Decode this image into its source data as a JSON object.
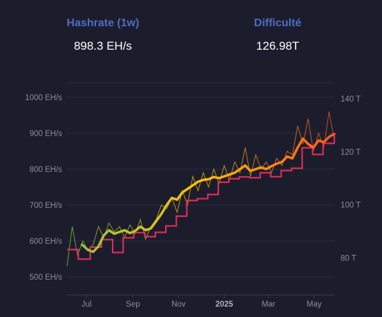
{
  "stats": {
    "hashrate": {
      "label": "Hashrate (1w)",
      "value": "898.3 EH/s"
    },
    "difficulty": {
      "label": "Difficulté",
      "value": "126.98T"
    }
  },
  "chart_data": {
    "type": "line",
    "grid": true,
    "x_range": [
      "2024-06-05",
      "2025-05-28"
    ],
    "x_ticks": [
      {
        "label": "Jul",
        "date": "2024-07-01",
        "bold": false
      },
      {
        "label": "Sep",
        "date": "2024-09-01",
        "bold": false
      },
      {
        "label": "Nov",
        "date": "2024-11-01",
        "bold": false
      },
      {
        "label": "2025",
        "date": "2025-01-01",
        "bold": true
      },
      {
        "label": "Mar",
        "date": "2025-03-01",
        "bold": false
      },
      {
        "label": "May",
        "date": "2025-05-01",
        "bold": false
      }
    ],
    "y_left": {
      "unit": "EH/s",
      "ylim": [
        450,
        1040
      ],
      "ticks": [
        "500 EH/s",
        "600 EH/s",
        "700 EH/s",
        "800 EH/s",
        "900 EH/s",
        "1000 EH/s"
      ],
      "tick_values": [
        500,
        600,
        700,
        800,
        900,
        1000
      ]
    },
    "y_right": {
      "unit": "T",
      "ylim": [
        66.0,
        146.0
      ],
      "ticks": [
        "80 T",
        "100 T",
        "120 T",
        "140 T"
      ],
      "tick_values": [
        80,
        100,
        120,
        140
      ]
    },
    "colors": {
      "gradient_start": "#8bc34a",
      "gradient_mid": "#ffc107",
      "gradient_end": "#ff5722",
      "difficulty": "#dd2c58",
      "grid": "#2c2e3d"
    },
    "series": [
      {
        "key": "hashrate_daily",
        "axis": "left",
        "points": [
          [
            "2024-06-05",
            530
          ],
          [
            "2024-06-12",
            640
          ],
          [
            "2024-06-19",
            560
          ],
          [
            "2024-06-26",
            600
          ],
          [
            "2024-07-03",
            575
          ],
          [
            "2024-07-10",
            590
          ],
          [
            "2024-07-17",
            640
          ],
          [
            "2024-07-24",
            610
          ],
          [
            "2024-07-31",
            650
          ],
          [
            "2024-08-07",
            625
          ],
          [
            "2024-08-14",
            640
          ],
          [
            "2024-08-21",
            610
          ],
          [
            "2024-08-28",
            645
          ],
          [
            "2024-09-04",
            620
          ],
          [
            "2024-09-11",
            660
          ],
          [
            "2024-09-18",
            605
          ],
          [
            "2024-09-25",
            640
          ],
          [
            "2024-10-02",
            660
          ],
          [
            "2024-10-09",
            700
          ],
          [
            "2024-10-16",
            690
          ],
          [
            "2024-10-23",
            720
          ],
          [
            "2024-10-30",
            680
          ],
          [
            "2024-11-06",
            740
          ],
          [
            "2024-11-13",
            700
          ],
          [
            "2024-11-20",
            780
          ],
          [
            "2024-11-27",
            740
          ],
          [
            "2024-12-04",
            790
          ],
          [
            "2024-12-11",
            750
          ],
          [
            "2024-12-18",
            800
          ],
          [
            "2024-12-25",
            760
          ],
          [
            "2025-01-01",
            810
          ],
          [
            "2025-01-08",
            770
          ],
          [
            "2025-01-15",
            820
          ],
          [
            "2025-01-22",
            790
          ],
          [
            "2025-01-29",
            860
          ],
          [
            "2025-02-05",
            780
          ],
          [
            "2025-02-12",
            840
          ],
          [
            "2025-02-19",
            800
          ],
          [
            "2025-02-26",
            820
          ],
          [
            "2025-03-05",
            790
          ],
          [
            "2025-03-12",
            830
          ],
          [
            "2025-03-19",
            810
          ],
          [
            "2025-03-26",
            850
          ],
          [
            "2025-04-02",
            840
          ],
          [
            "2025-04-09",
            920
          ],
          [
            "2025-04-16",
            870
          ],
          [
            "2025-04-23",
            940
          ],
          [
            "2025-04-30",
            850
          ],
          [
            "2025-05-07",
            900
          ],
          [
            "2025-05-14",
            860
          ],
          [
            "2025-05-21",
            960
          ],
          [
            "2025-05-28",
            880
          ]
        ]
      },
      {
        "key": "hashrate_1w",
        "axis": "left",
        "points": [
          [
            "2024-06-25",
            590
          ],
          [
            "2024-07-03",
            575
          ],
          [
            "2024-07-10",
            570
          ],
          [
            "2024-07-17",
            585
          ],
          [
            "2024-07-24",
            615
          ],
          [
            "2024-07-31",
            630
          ],
          [
            "2024-08-07",
            620
          ],
          [
            "2024-08-14",
            625
          ],
          [
            "2024-08-21",
            630
          ],
          [
            "2024-08-28",
            622
          ],
          [
            "2024-09-04",
            628
          ],
          [
            "2024-09-11",
            640
          ],
          [
            "2024-09-18",
            630
          ],
          [
            "2024-09-25",
            635
          ],
          [
            "2024-10-02",
            655
          ],
          [
            "2024-10-09",
            675
          ],
          [
            "2024-10-16",
            700
          ],
          [
            "2024-10-23",
            720
          ],
          [
            "2024-10-30",
            715
          ],
          [
            "2024-11-06",
            735
          ],
          [
            "2024-11-13",
            745
          ],
          [
            "2024-11-20",
            755
          ],
          [
            "2024-11-27",
            765
          ],
          [
            "2024-12-04",
            770
          ],
          [
            "2024-12-11",
            772
          ],
          [
            "2024-12-18",
            778
          ],
          [
            "2024-12-25",
            775
          ],
          [
            "2025-01-01",
            780
          ],
          [
            "2025-01-08",
            785
          ],
          [
            "2025-01-15",
            790
          ],
          [
            "2025-01-22",
            800
          ],
          [
            "2025-01-29",
            810
          ],
          [
            "2025-02-05",
            795
          ],
          [
            "2025-02-12",
            800
          ],
          [
            "2025-02-19",
            805
          ],
          [
            "2025-02-26",
            800
          ],
          [
            "2025-03-05",
            808
          ],
          [
            "2025-03-12",
            815
          ],
          [
            "2025-03-19",
            820
          ],
          [
            "2025-03-26",
            835
          ],
          [
            "2025-04-02",
            830
          ],
          [
            "2025-04-09",
            860
          ],
          [
            "2025-04-16",
            885
          ],
          [
            "2025-04-23",
            870
          ],
          [
            "2025-04-30",
            860
          ],
          [
            "2025-05-07",
            880
          ],
          [
            "2025-05-14",
            875
          ],
          [
            "2025-05-21",
            890
          ],
          [
            "2025-05-28",
            898
          ]
        ]
      },
      {
        "key": "difficulty",
        "axis": "right",
        "step": true,
        "points": [
          [
            "2024-06-05",
            83.1
          ],
          [
            "2024-06-20",
            79.5
          ],
          [
            "2024-07-06",
            84.0
          ],
          [
            "2024-07-21",
            86.9
          ],
          [
            "2024-08-05",
            82.0
          ],
          [
            "2024-08-19",
            87.5
          ],
          [
            "2024-09-02",
            89.5
          ],
          [
            "2024-09-17",
            88.0
          ],
          [
            "2024-10-01",
            89.6
          ],
          [
            "2024-10-15",
            92.0
          ],
          [
            "2024-10-29",
            95.7
          ],
          [
            "2024-11-12",
            101.6
          ],
          [
            "2024-11-26",
            102.3
          ],
          [
            "2024-12-10",
            103.9
          ],
          [
            "2024-12-24",
            108.5
          ],
          [
            "2025-01-07",
            109.8
          ],
          [
            "2025-01-21",
            110.5
          ],
          [
            "2025-02-04",
            110.2
          ],
          [
            "2025-02-18",
            112.1
          ],
          [
            "2025-03-04",
            110.6
          ],
          [
            "2025-03-18",
            112.9
          ],
          [
            "2025-04-01",
            113.8
          ],
          [
            "2025-04-15",
            121.5
          ],
          [
            "2025-04-29",
            119.0
          ],
          [
            "2025-05-13",
            123.2
          ],
          [
            "2025-05-28",
            126.98
          ]
        ]
      }
    ]
  }
}
